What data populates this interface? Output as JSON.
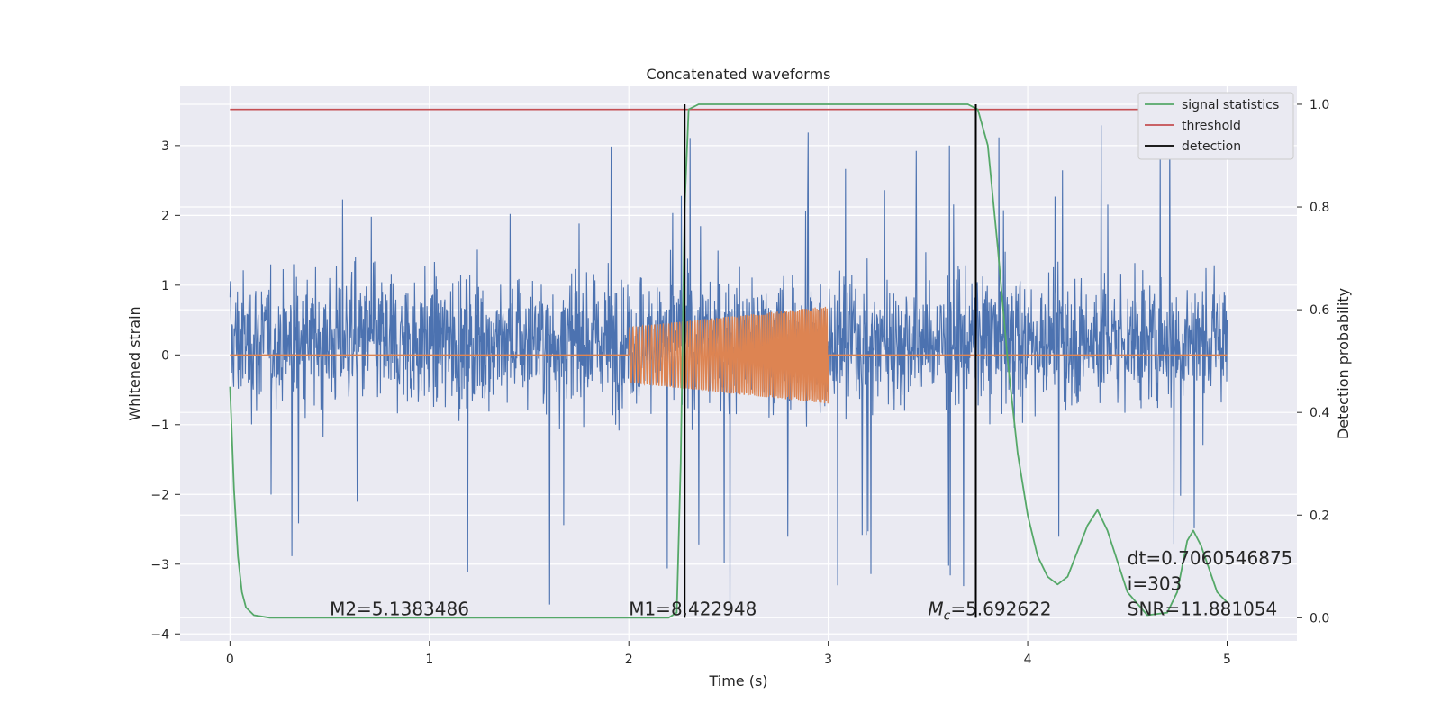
{
  "chart_data": {
    "type": "line",
    "title": "Concatenated waveforms",
    "xlabel": "Time (s)",
    "ylabel": "Whitened strain",
    "ylabel_right": "Detection probability",
    "xlim": [
      -0.25,
      5.35
    ],
    "ylim": [
      -4.1,
      3.85
    ],
    "ylim_right": [
      -0.045,
      1.035
    ],
    "x_ticks": [
      0,
      1,
      2,
      3,
      4,
      5
    ],
    "y_ticks": [
      -4,
      -3,
      -2,
      -1,
      0,
      1,
      2,
      3
    ],
    "y_ticks_right": [
      0.0,
      0.2,
      0.4,
      0.6,
      0.8,
      1.0
    ],
    "x_tick_labels": [
      "0",
      "1",
      "2",
      "3",
      "4",
      "5"
    ],
    "y_tick_labels": [
      "−4",
      "−3",
      "−2",
      "−1",
      "0",
      "1",
      "2",
      "3"
    ],
    "y_tick_labels_right": [
      "0.0",
      "0.2",
      "0.4",
      "0.6",
      "0.8",
      "1.0"
    ],
    "grid": true,
    "colors": {
      "background": "#eaeaf2",
      "grid": "#ffffff",
      "strain": "#4c72b0",
      "template": "#dd8452",
      "signal_statistics": "#55a868",
      "threshold": "#c44e52",
      "detection": "#000000"
    },
    "series": [
      {
        "name": "whitened strain (noise)",
        "kind": "noise",
        "x_range": [
          0,
          5
        ],
        "envelope_typical": [
          -1.0,
          1.4
        ],
        "envelope_extreme": [
          -3.8,
          3.5
        ],
        "axis": "left"
      },
      {
        "name": "waveform template",
        "kind": "chirp",
        "x_range": [
          2,
          3
        ],
        "amplitude_start": 0.4,
        "amplitude_end": 0.7,
        "baseline": 0,
        "axis": "left"
      },
      {
        "name": "signal statistics",
        "axis": "right",
        "x": [
          0.0,
          0.02,
          0.04,
          0.06,
          0.08,
          0.12,
          0.2,
          0.5,
          1.0,
          1.5,
          2.0,
          2.2,
          2.24,
          2.26,
          2.28,
          2.3,
          2.35,
          3.0,
          3.5,
          3.7,
          3.75,
          3.8,
          3.85,
          3.9,
          3.95,
          4.0,
          4.05,
          4.1,
          4.15,
          4.2,
          4.3,
          4.35,
          4.4,
          4.5,
          4.6,
          4.7,
          4.75,
          4.8,
          4.83,
          4.87,
          4.95,
          5.0
        ],
        "y": [
          0.45,
          0.25,
          0.12,
          0.05,
          0.02,
          0.005,
          0.0,
          0.0,
          0.0,
          0.0,
          0.0,
          0.0,
          0.01,
          0.3,
          0.8,
          0.99,
          1.0,
          1.0,
          1.0,
          1.0,
          0.99,
          0.92,
          0.72,
          0.5,
          0.32,
          0.2,
          0.12,
          0.08,
          0.065,
          0.08,
          0.18,
          0.21,
          0.17,
          0.05,
          0.005,
          0.01,
          0.05,
          0.15,
          0.17,
          0.14,
          0.05,
          0.03
        ]
      },
      {
        "name": "threshold",
        "axis": "right",
        "x": [
          0,
          5
        ],
        "y": [
          0.99,
          0.99
        ]
      },
      {
        "name": "detection",
        "axis": "right",
        "kind": "vlines",
        "x": [
          2.28,
          3.74
        ],
        "y_range": [
          0,
          1
        ]
      }
    ],
    "legend": {
      "placement": "top-right",
      "entries": [
        {
          "label": "signal statistics",
          "color": "#55a868"
        },
        {
          "label": "threshold",
          "color": "#c44e52"
        },
        {
          "label": "detection",
          "color": "#000000"
        }
      ]
    },
    "annotations": [
      {
        "text": "M2=5.1383486",
        "x": 0.5,
        "y": -3.73
      },
      {
        "text": "M1=8.422948",
        "x": 2.0,
        "y": -3.73
      },
      {
        "text_main": "M",
        "text_sub": "c",
        "text_rest": "=5.692622",
        "x": 3.5,
        "y": -3.73
      },
      {
        "text": "SNR=11.881054",
        "x": 4.5,
        "y": -3.73
      },
      {
        "text": "dt=0.7060546875",
        "x": 4.5,
        "y": -3.0
      },
      {
        "text": " i=303",
        "x": 4.5,
        "y": -3.37
      }
    ]
  }
}
